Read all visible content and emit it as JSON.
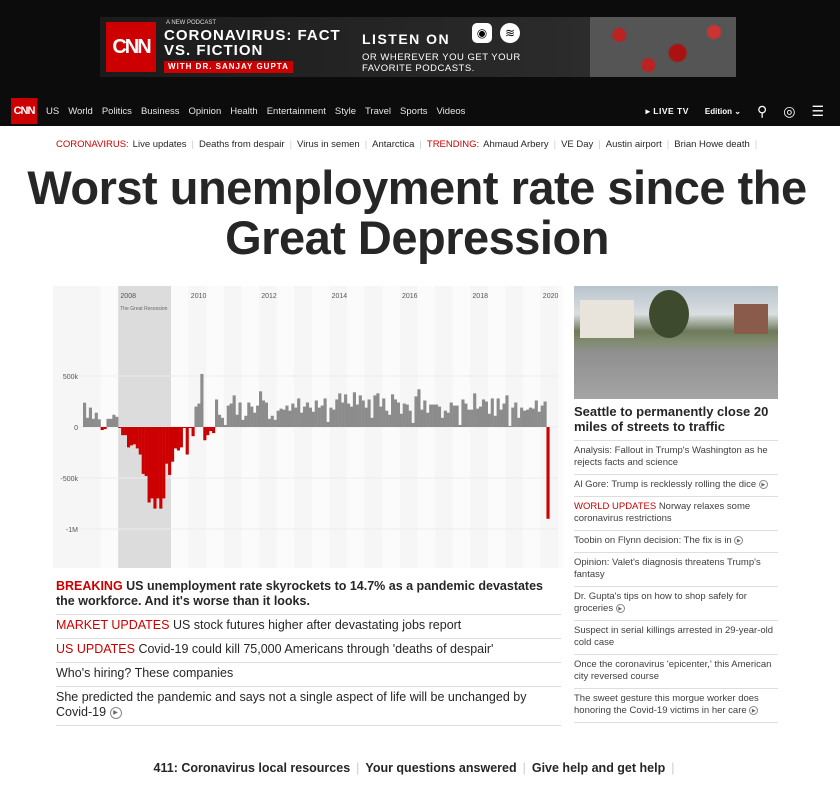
{
  "ad": {
    "logo": "CNN",
    "kicker": "A NEW PODCAST",
    "title": "CORONAVIRUS: FACT VS. FICTION",
    "with": "WITH DR. SANJAY GUPTA",
    "listen": "LISTEN ON",
    "or": "OR WHEREVER YOU GET YOUR FAVORITE PODCASTS.",
    "icons": [
      "apple-podcasts-icon",
      "spotify-icon"
    ]
  },
  "nav": {
    "logo": "CNN",
    "items": [
      "US",
      "World",
      "Politics",
      "Business",
      "Opinion",
      "Health",
      "Entertainment",
      "Style",
      "Travel",
      "Sports",
      "Videos"
    ],
    "live": "▸ LIVE TV",
    "edition": "Edition ⌄"
  },
  "trending": {
    "corona_label": "CORONAVIRUS:",
    "corona_items": [
      "Live updates",
      "Deaths from despair",
      "Virus in semen",
      "Antarctica"
    ],
    "trend_label": "TRENDING:",
    "trend_items": [
      "Ahmaud Arbery",
      "VE Day",
      "Austin airport",
      "Brian Howe death"
    ]
  },
  "headline": "Worst unemployment rate since the Great Depression",
  "chart_data": {
    "type": "bar",
    "x_start": "2007-01",
    "x_interval": "month",
    "x_ticks": [
      "2008",
      "2010",
      "2012",
      "2014",
      "2016",
      "2018",
      "2020"
    ],
    "y_ticks": [
      "500k",
      "0",
      "-500k",
      "-1M"
    ],
    "ylim": [
      -1200,
      650
    ],
    "annotation": "The Great Recession",
    "shaded_range": [
      "2008-01",
      "2009-06"
    ],
    "colors": {
      "positive": "#8c8c8c",
      "negative": "#cc0000",
      "shade": "#dcdcdc"
    },
    "values": [
      238,
      90,
      190,
      80,
      140,
      75,
      -30,
      -20,
      80,
      80,
      120,
      100,
      -10,
      -80,
      -80,
      -200,
      -180,
      -170,
      -210,
      -270,
      -460,
      -480,
      -740,
      -700,
      -800,
      -700,
      -800,
      -700,
      -360,
      -470,
      -340,
      -210,
      -230,
      -200,
      -10,
      -270,
      -10,
      -90,
      200,
      230,
      520,
      -130,
      -80,
      -40,
      -60,
      270,
      120,
      90,
      20,
      210,
      230,
      310,
      120,
      240,
      70,
      110,
      240,
      200,
      140,
      210,
      350,
      260,
      240,
      80,
      110,
      70,
      160,
      180,
      170,
      210,
      160,
      230,
      190,
      280,
      140,
      200,
      240,
      190,
      150,
      260,
      190,
      210,
      280,
      50,
      190,
      170,
      270,
      330,
      240,
      320,
      230,
      200,
      340,
      220,
      310,
      260,
      190,
      270,
      90,
      310,
      330,
      200,
      280,
      160,
      120,
      320,
      270,
      240,
      130,
      230,
      220,
      160,
      40,
      300,
      370,
      170,
      260,
      140,
      220,
      220,
      220,
      200,
      90,
      160,
      140,
      240,
      210,
      210,
      20,
      270,
      230,
      170,
      170,
      330,
      180,
      200,
      270,
      250,
      130,
      280,
      110,
      280,
      170,
      230,
      310,
      10,
      190,
      240,
      90,
      190,
      160,
      170,
      190,
      180,
      260,
      150,
      210,
      250,
      -900
    ]
  },
  "main_links": [
    {
      "label": "BREAKING",
      "text": "US unemployment rate skyrockets to 14.7% as a pandemic devastates the workforce. And it's worse than it looks.",
      "big": true
    },
    {
      "label": "MARKET UPDATES",
      "text": "US stock futures higher after devastating jobs report"
    },
    {
      "label": "US UPDATES",
      "text": "Covid-19 could kill 75,000 Americans through 'deaths of despair'"
    },
    {
      "label": "",
      "text": "Who's hiring? These companies"
    },
    {
      "label": "",
      "text": "She predicted the pandemic and says not a single aspect of life will be unchanged by Covid-19",
      "video": true
    }
  ],
  "right": {
    "headline": "Seattle to permanently close 20 miles of streets to traffic",
    "links": [
      {
        "label": "",
        "text": "Analysis: Fallout in Trump's Washington as he rejects facts and science"
      },
      {
        "label": "",
        "text": "Al Gore: Trump is recklessly rolling the dice",
        "video": true
      },
      {
        "label": "WORLD UPDATES",
        "text": "Norway relaxes some coronavirus restrictions"
      },
      {
        "label": "",
        "text": "Toobin on Flynn decision: The fix is in",
        "video": true
      },
      {
        "label": "",
        "text": "Opinion: Valet's diagnosis threatens Trump's fantasy"
      },
      {
        "label": "",
        "text": "Dr. Gupta's tips on how to shop safely for groceries",
        "video": true
      },
      {
        "label": "",
        "text": "Suspect in serial killings arrested in 29-year-old cold case"
      },
      {
        "label": "",
        "text": "Once the coronavirus 'epicenter,' this American city reversed course"
      },
      {
        "label": "",
        "text": "The sweet gesture this morgue worker does honoring the Covid-19 victims in her care",
        "video": true
      }
    ]
  },
  "bottom": [
    "411: Coronavirus local resources",
    "Your questions answered",
    "Give help and get help"
  ]
}
